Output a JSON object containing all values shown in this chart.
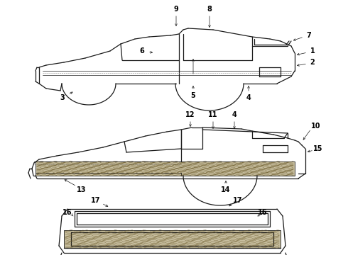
{
  "background_color": "#ffffff",
  "line_color": "#1a1a1a",
  "label_color": "#000000",
  "figure_width": 4.9,
  "figure_height": 3.6,
  "dpi": 100,
  "font_size": 7.0,
  "wood_color": "#c8bfa0",
  "wood_grain_color": "#6b5a2a"
}
